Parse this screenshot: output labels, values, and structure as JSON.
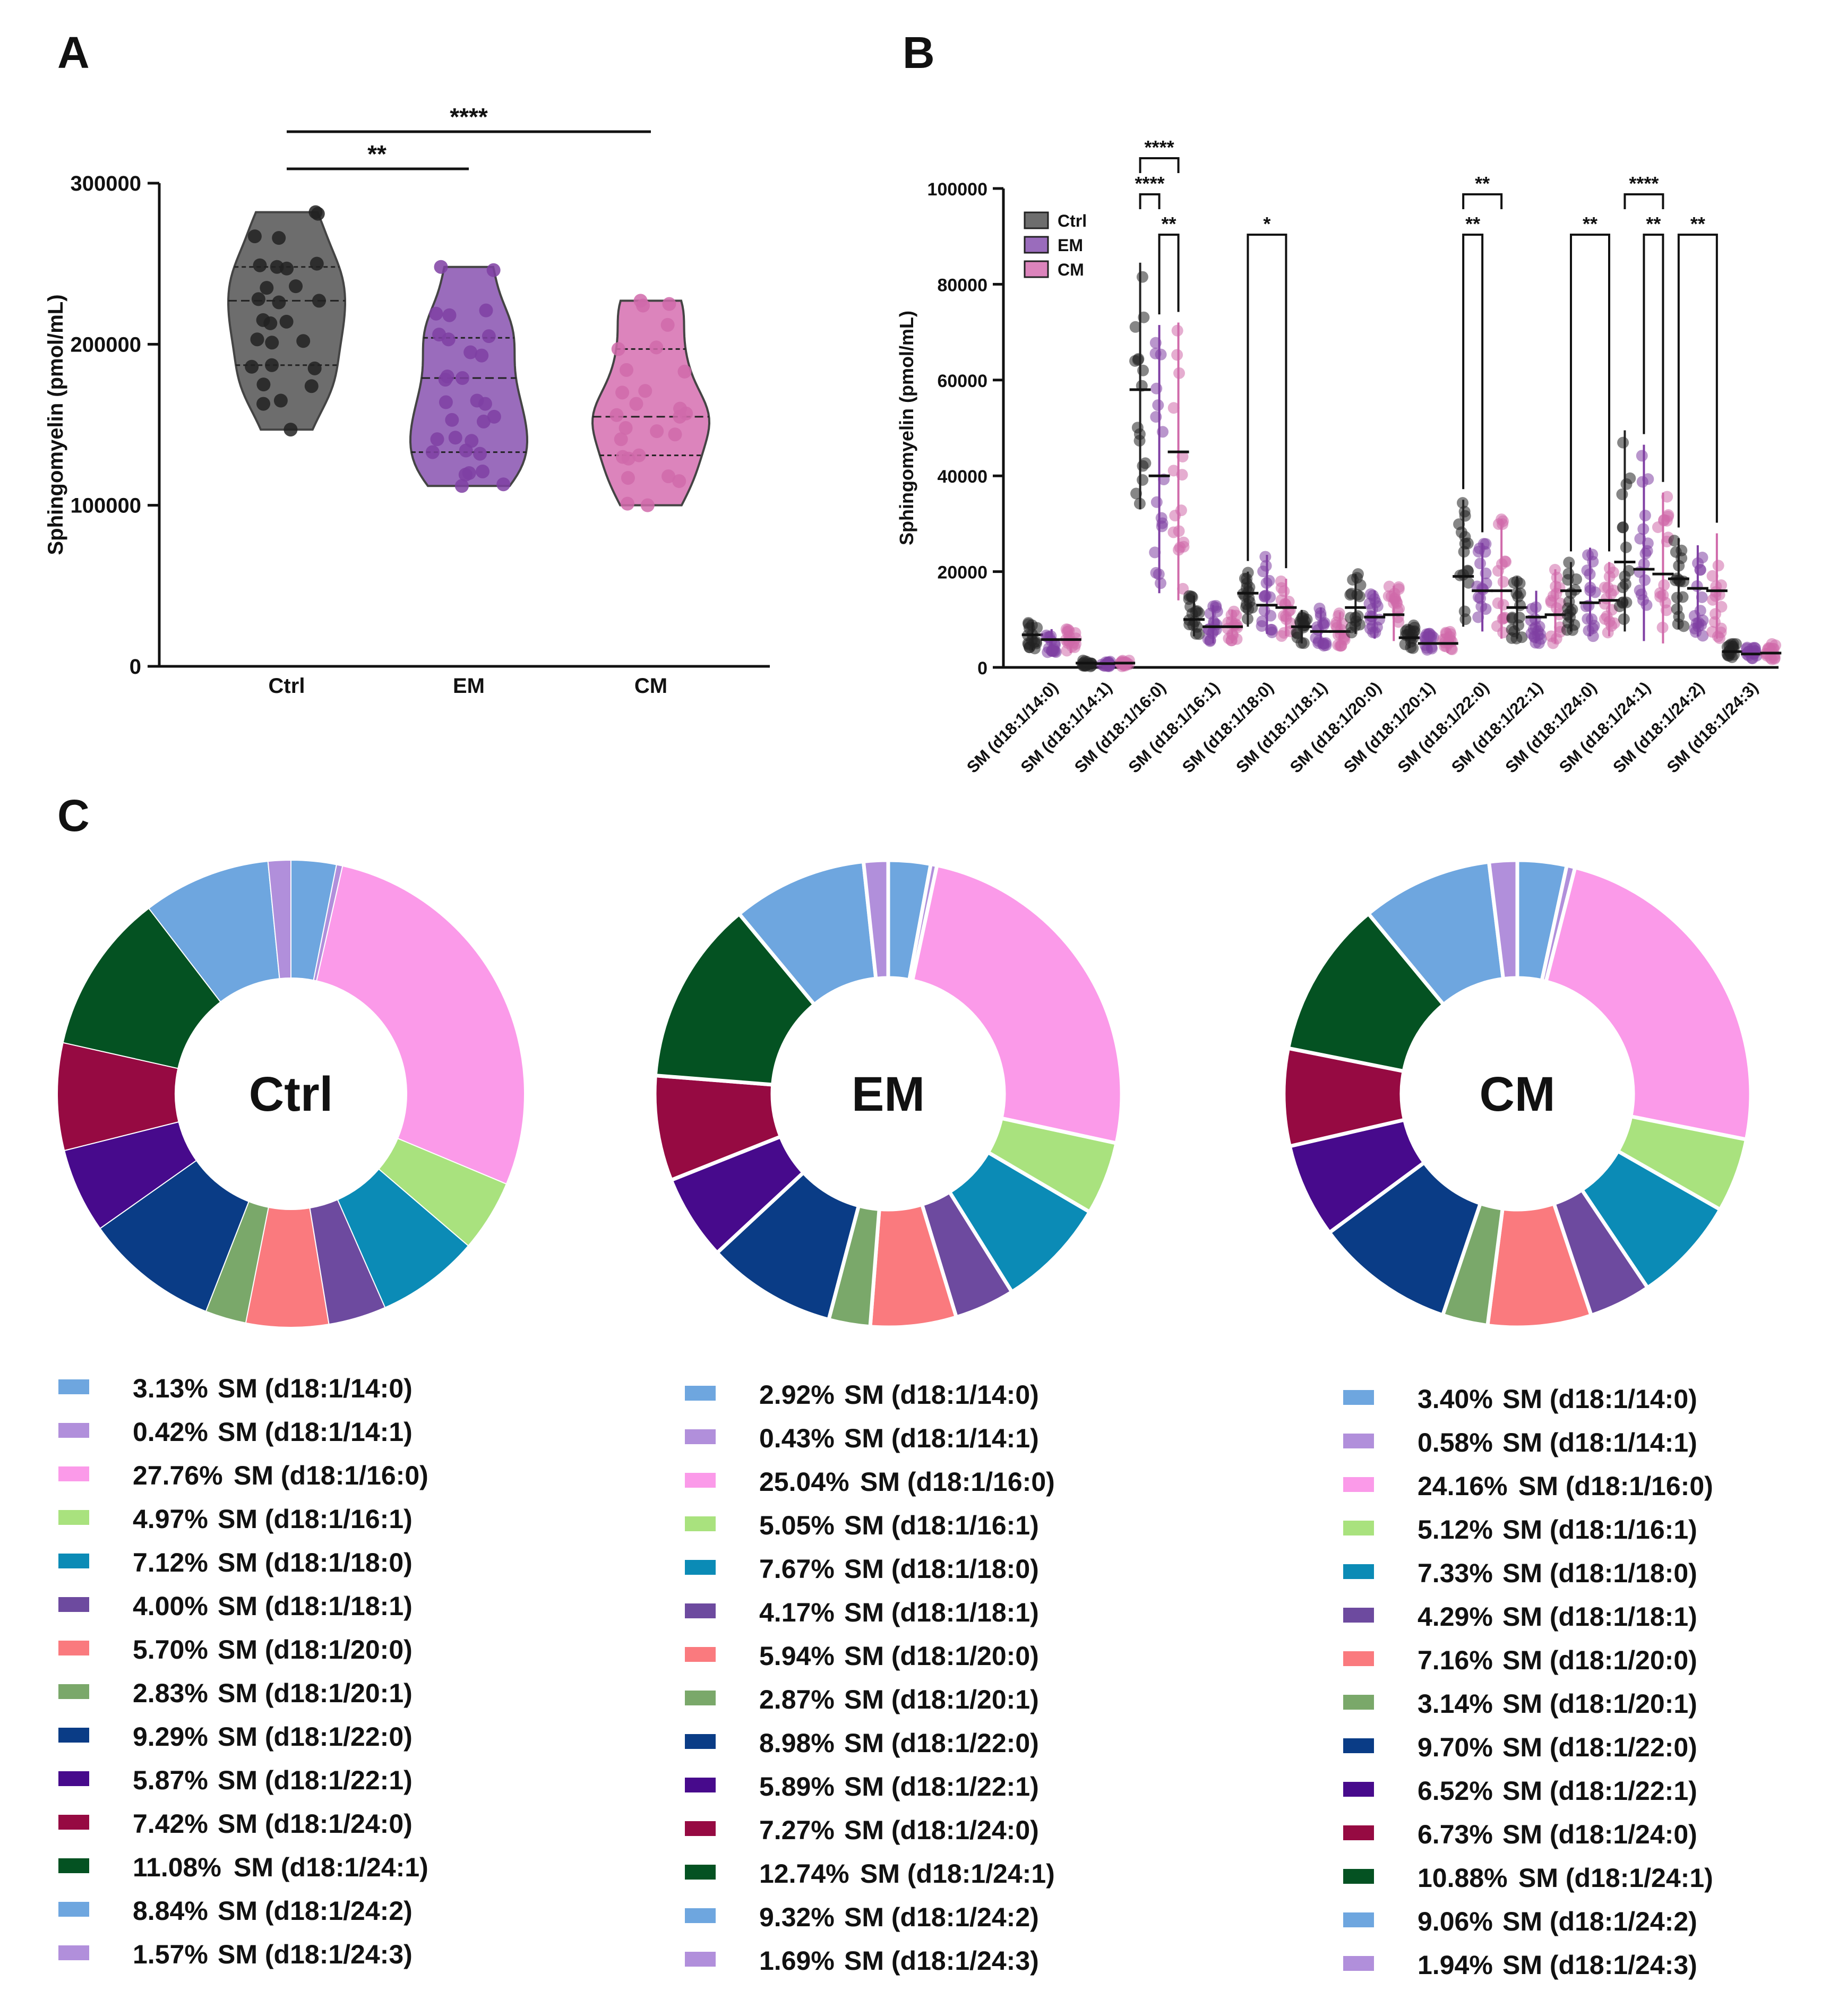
{
  "panels": {
    "a": "A",
    "b": "B",
    "c": "C"
  },
  "colors": {
    "ctrl": "#555555",
    "em": "#7a3f9d",
    "cm": "#c9559a",
    "ctrl_fill": "#6d6d6d",
    "em_fill": "#9a6cbc",
    "cm_fill": "#dc84bc",
    "ctrl_dot": "#222222",
    "em_dot": "#7f3fa3",
    "cm_dot": "#d06aaa"
  },
  "chart_data": [
    {
      "id": "A",
      "type": "violin",
      "title": "",
      "ylabel": "Sphingomyelin (pmol/mL)",
      "ylim": [
        0,
        300000
      ],
      "yticks": [
        0,
        100000,
        200000,
        300000
      ],
      "ytick_labels": [
        "0",
        "100000",
        "200000",
        "300000"
      ],
      "categories": [
        "Ctrl",
        "EM",
        "CM"
      ],
      "groups": [
        {
          "name": "Ctrl",
          "min": 147000,
          "max": 282000,
          "q1": 187000,
          "median": 227000,
          "q3": 248000,
          "points": [
            282000,
            281000,
            267000,
            266000,
            250000,
            249000,
            248000,
            247000,
            236000,
            235000,
            228000,
            227000,
            226000,
            215000,
            214000,
            213000,
            203000,
            202000,
            201000,
            187000,
            186000,
            185000,
            175000,
            174000,
            165000,
            163000,
            147000
          ]
        },
        {
          "name": "EM",
          "min": 112000,
          "max": 248000,
          "q1": 133000,
          "median": 179000,
          "q3": 204000,
          "points": [
            248000,
            246000,
            221000,
            219000,
            218000,
            206000,
            205000,
            203000,
            195000,
            193000,
            180000,
            179000,
            178000,
            165000,
            164000,
            163000,
            155000,
            153000,
            152000,
            142000,
            141000,
            140000,
            134000,
            133000,
            132000,
            121000,
            120000,
            119000,
            112000,
            113000
          ]
        },
        {
          "name": "CM",
          "min": 100000,
          "max": 227000,
          "q1": 131000,
          "median": 155000,
          "q3": 197000,
          "points": [
            227000,
            225000,
            224000,
            212000,
            198000,
            197000,
            184000,
            183000,
            171000,
            170000,
            163000,
            160000,
            157000,
            156000,
            155000,
            148000,
            146000,
            144000,
            141000,
            131000,
            130000,
            129000,
            118000,
            117000,
            115000,
            101000,
            100000
          ]
        }
      ],
      "significance": [
        {
          "from": "Ctrl",
          "to": "EM",
          "label": "**"
        },
        {
          "from": "Ctrl",
          "to": "CM",
          "label": "****"
        }
      ]
    },
    {
      "id": "B",
      "type": "scatter",
      "title": "",
      "ylabel": "Sphingomyelin (pmol/mL)",
      "ylim": [
        0,
        100000
      ],
      "yticks": [
        0,
        20000,
        40000,
        60000,
        80000,
        100000
      ],
      "ytick_labels": [
        "0",
        "20000",
        "40000",
        "60000",
        "80000",
        "100000"
      ],
      "legend": [
        "Ctrl",
        "EM",
        "CM"
      ],
      "categories": [
        "SM (d18:1/14:0)",
        "SM (d18:1/14:1)",
        "SM (d18:1/16:0)",
        "SM (d18:1/16:1)",
        "SM (d18:1/18:0)",
        "SM (d18:1/18:1)",
        "SM (d18:1/20:0)",
        "SM (d18:1/20:1)",
        "SM (d18:1/22:0)",
        "SM (d18:1/22:1)",
        "SM (d18:1/24:0)",
        "SM (d18:1/24:1)",
        "SM (d18:1/24:2)",
        "SM (d18:1/24:3)"
      ],
      "series": [
        {
          "name": "Ctrl",
          "ranges": [
            [
              3500,
              9500
            ],
            [
              200,
              1500
            ],
            [
              33000,
              84500
            ],
            [
              6500,
              15000
            ],
            [
              8500,
              20000
            ],
            [
              5000,
              12000
            ],
            [
              7000,
              19500
            ],
            [
              4000,
              9000
            ],
            [
              8500,
              35000
            ],
            [
              6000,
              19000
            ],
            [
              7500,
              22000
            ],
            [
              7500,
              49500
            ],
            [
              8000,
              27000
            ],
            [
              2000,
              5000
            ]
          ],
          "medians": [
            6800,
            900,
            58000,
            10000,
            15500,
            8500,
            12500,
            6200,
            19000,
            12500,
            16000,
            22000,
            18500,
            3300
          ]
        },
        {
          "name": "EM",
          "ranges": [
            [
              3000,
              8000
            ],
            [
              200,
              1300
            ],
            [
              15500,
              71500
            ],
            [
              5000,
              13000
            ],
            [
              7000,
              23500
            ],
            [
              4000,
              12500
            ],
            [
              6000,
              16000
            ],
            [
              3500,
              7500
            ],
            [
              7500,
              26000
            ],
            [
              5000,
              16000
            ],
            [
              6500,
              25000
            ],
            [
              5500,
              46500
            ],
            [
              6500,
              25500
            ],
            [
              1800,
              4500
            ]
          ],
          "medians": [
            5800,
            800,
            40000,
            8500,
            13000,
            7500,
            10500,
            5000,
            16000,
            10500,
            13500,
            20500,
            16500,
            2800
          ]
        },
        {
          "name": "CM",
          "ranges": [
            [
              3000,
              8000
            ],
            [
              200,
              1500
            ],
            [
              14000,
              72000
            ],
            [
              5000,
              12000
            ],
            [
              6500,
              18500
            ],
            [
              4000,
              11500
            ],
            [
              5500,
              17000
            ],
            [
              3000,
              7500
            ],
            [
              6000,
              31000
            ],
            [
              5000,
              20500
            ],
            [
              6500,
              22000
            ],
            [
              5000,
              36500
            ],
            [
              6000,
              28000
            ],
            [
              1500,
              5000
            ]
          ],
          "medians": [
            5800,
            900,
            45000,
            8500,
            12500,
            7500,
            11000,
            5000,
            16000,
            11000,
            14000,
            19500,
            16000,
            3000
          ]
        }
      ],
      "significance": [
        {
          "category": 2,
          "pair": "Ctrl-EM",
          "label": "****"
        },
        {
          "category": 2,
          "pair": "Ctrl-CM",
          "label": "****"
        },
        {
          "category": 2,
          "pair": "EM-CM",
          "label": "**"
        },
        {
          "category": 4,
          "pair": "Ctrl-CM",
          "label": "*"
        },
        {
          "category": 8,
          "pair": "Ctrl-EM",
          "label": "**"
        },
        {
          "category": 8,
          "pair": "Ctrl-CM",
          "label": "**"
        },
        {
          "category": 10,
          "pair": "Ctrl-CM",
          "label": "**"
        },
        {
          "category": 11,
          "pair": "Ctrl-CM",
          "label": "****"
        },
        {
          "category": 11,
          "pair": "EM-CM",
          "label": "**"
        },
        {
          "category": 12,
          "pair": "Ctrl-CM",
          "label": "**"
        }
      ]
    },
    {
      "id": "C",
      "type": "pie",
      "donut": true,
      "species": [
        "SM (d18:1/14:0)",
        "SM (d18:1/14:1)",
        "SM (d18:1/16:0)",
        "SM (d18:1/16:1)",
        "SM (d18:1/18:0)",
        "SM (d18:1/18:1)",
        "SM (d18:1/20:0)",
        "SM (d18:1/20:1)",
        "SM (d18:1/22:0)",
        "SM (d18:1/22:1)",
        "SM (d18:1/24:0)",
        "SM (d18:1/24:1)",
        "SM (d18:1/24:2)",
        "SM (d18:1/24:3)"
      ],
      "slice_colors": [
        "#6ea6df",
        "#b18fdb",
        "#fb9ae9",
        "#a9e27e",
        "#0b8bb6",
        "#6d4a9f",
        "#fa7a7e",
        "#7aa86a",
        "#0a3c86",
        "#470a8c",
        "#960a42",
        "#045222",
        "#6ea6df",
        "#b18fdb"
      ],
      "pies": [
        {
          "name": "Ctrl",
          "values": [
            3.13,
            0.42,
            27.76,
            4.97,
            7.12,
            4.0,
            5.7,
            2.83,
            9.29,
            5.87,
            7.42,
            11.08,
            8.84,
            1.57
          ],
          "labels": [
            "3.13%",
            "0.42%",
            "27.76%",
            "4.97%",
            "7.12%",
            "4.00%",
            "5.70%",
            "2.83%",
            "9.29%",
            "5.87%",
            "7.42%",
            "11.08%",
            "8.84%",
            "1.57%"
          ]
        },
        {
          "name": "EM",
          "values": [
            2.92,
            0.43,
            25.04,
            5.05,
            7.67,
            4.17,
            5.94,
            2.87,
            8.98,
            5.89,
            7.27,
            12.74,
            9.32,
            1.69
          ],
          "labels": [
            "2.92%",
            "0.43%",
            "25.04%",
            "5.05%",
            "7.67%",
            "4.17%",
            "5.94%",
            "2.87%",
            "8.98%",
            "5.89%",
            "7.27%",
            "12.74%",
            "9.32%",
            "1.69%"
          ]
        },
        {
          "name": "CM",
          "values": [
            3.4,
            0.58,
            24.16,
            5.12,
            7.33,
            4.29,
            7.16,
            3.14,
            9.7,
            6.52,
            6.73,
            10.88,
            9.06,
            1.94
          ],
          "labels": [
            "3.40%",
            "0.58%",
            "24.16%",
            "5.12%",
            "7.33%",
            "4.29%",
            "7.16%",
            "3.14%",
            "9.70%",
            "6.52%",
            "6.73%",
            "10.88%",
            "9.06%",
            "1.94%"
          ]
        }
      ]
    }
  ]
}
